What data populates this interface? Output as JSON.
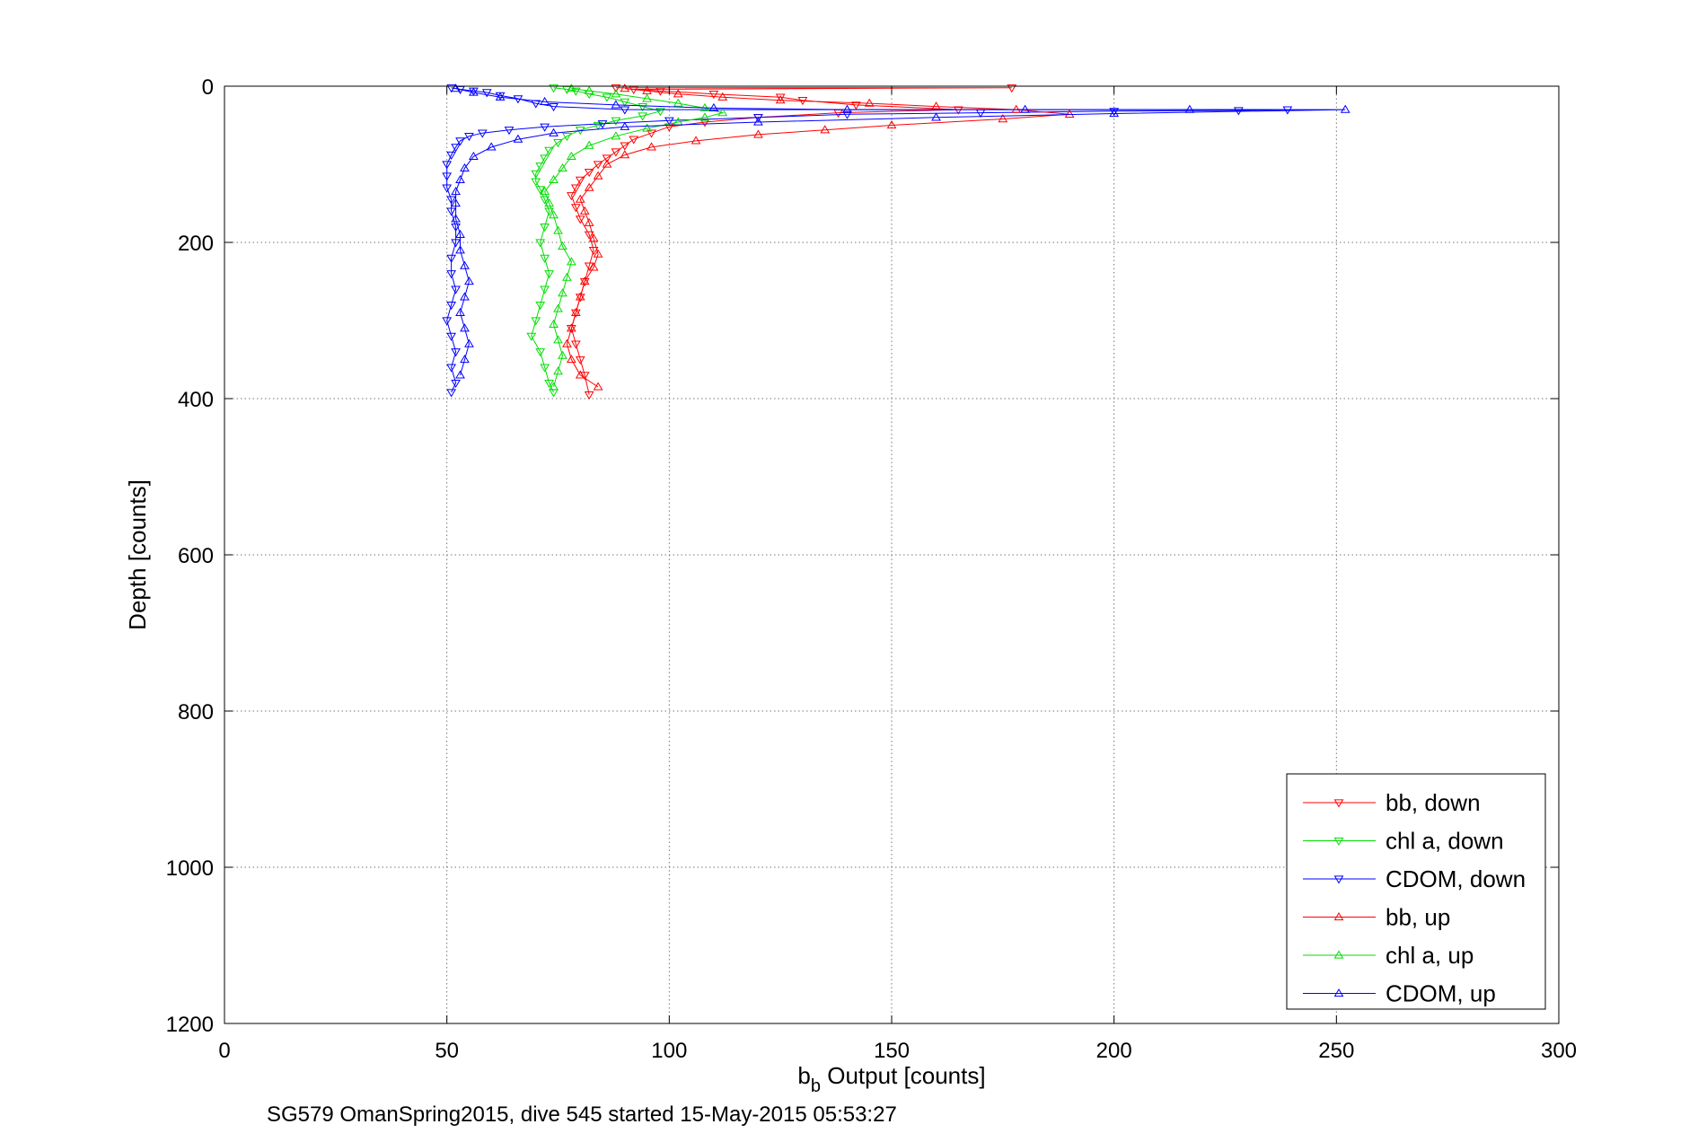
{
  "chart_data": {
    "type": "scatter",
    "title": "",
    "xlabel_base": "b",
    "xlabel_sub": "b",
    "xlabel_rest": " Output [counts]",
    "ylabel": "Depth [counts]",
    "caption": "SG579 OmanSpring2015, dive 545 started 15-May-2015 05:53:27",
    "xlim": [
      0,
      300
    ],
    "ylim": [
      0,
      1200
    ],
    "y_reversed": true,
    "grid": true,
    "legend_position": "bottom-right",
    "x_ticks": [
      0,
      50,
      100,
      150,
      200,
      250,
      300
    ],
    "y_ticks": [
      0,
      200,
      400,
      600,
      800,
      1000,
      1200
    ],
    "x_tick_labels": [
      "0",
      "50",
      "100",
      "150",
      "200",
      "250",
      "300"
    ],
    "y_tick_labels": [
      "0",
      "200",
      "400",
      "600",
      "800",
      "1000",
      "1200"
    ],
    "series": [
      {
        "name": "bb, down",
        "color": "#ff0000",
        "marker": "triangle-down",
        "points": [
          [
            88,
            2
          ],
          [
            177,
            2
          ],
          [
            92,
            4
          ],
          [
            98,
            6
          ],
          [
            110,
            10
          ],
          [
            125,
            14
          ],
          [
            130,
            18
          ],
          [
            142,
            24
          ],
          [
            165,
            30
          ],
          [
            138,
            34
          ],
          [
            120,
            40
          ],
          [
            108,
            46
          ],
          [
            100,
            52
          ],
          [
            96,
            60
          ],
          [
            92,
            68
          ],
          [
            90,
            76
          ],
          [
            88,
            84
          ],
          [
            86,
            92
          ],
          [
            84,
            100
          ],
          [
            82,
            110
          ],
          [
            80,
            120
          ],
          [
            79,
            130
          ],
          [
            78,
            140
          ],
          [
            79,
            155
          ],
          [
            80,
            170
          ],
          [
            82,
            190
          ],
          [
            83,
            210
          ],
          [
            82,
            230
          ],
          [
            81,
            250
          ],
          [
            80,
            270
          ],
          [
            79,
            290
          ],
          [
            78,
            310
          ],
          [
            79,
            330
          ],
          [
            80,
            350
          ],
          [
            81,
            370
          ],
          [
            82,
            395
          ]
        ]
      },
      {
        "name": "chl a, down",
        "color": "#00dd00",
        "marker": "triangle-down",
        "points": [
          [
            74,
            2
          ],
          [
            77,
            4
          ],
          [
            79,
            6
          ],
          [
            82,
            10
          ],
          [
            86,
            14
          ],
          [
            90,
            20
          ],
          [
            94,
            26
          ],
          [
            98,
            32
          ],
          [
            94,
            38
          ],
          [
            88,
            44
          ],
          [
            84,
            50
          ],
          [
            80,
            56
          ],
          [
            77,
            64
          ],
          [
            75,
            72
          ],
          [
            73,
            82
          ],
          [
            72,
            92
          ],
          [
            71,
            102
          ],
          [
            70,
            112
          ],
          [
            70,
            122
          ],
          [
            71,
            132
          ],
          [
            72,
            145
          ],
          [
            73,
            160
          ],
          [
            72,
            180
          ],
          [
            71,
            200
          ],
          [
            72,
            220
          ],
          [
            73,
            240
          ],
          [
            72,
            260
          ],
          [
            71,
            280
          ],
          [
            70,
            300
          ],
          [
            69,
            320
          ],
          [
            71,
            340
          ],
          [
            72,
            360
          ],
          [
            73,
            380
          ],
          [
            74,
            392
          ]
        ]
      },
      {
        "name": "CDOM, down",
        "color": "#0000ff",
        "marker": "triangle-down",
        "points": [
          [
            51,
            2
          ],
          [
            53,
            4
          ],
          [
            56,
            6
          ],
          [
            59,
            8
          ],
          [
            62,
            12
          ],
          [
            66,
            16
          ],
          [
            70,
            22
          ],
          [
            74,
            26
          ],
          [
            90,
            30
          ],
          [
            239,
            30
          ],
          [
            228,
            31
          ],
          [
            200,
            32
          ],
          [
            170,
            34
          ],
          [
            140,
            36
          ],
          [
            120,
            40
          ],
          [
            100,
            44
          ],
          [
            85,
            48
          ],
          [
            72,
            52
          ],
          [
            64,
            56
          ],
          [
            58,
            60
          ],
          [
            55,
            64
          ],
          [
            53,
            70
          ],
          [
            52,
            78
          ],
          [
            51,
            88
          ],
          [
            50,
            100
          ],
          [
            50,
            115
          ],
          [
            50,
            130
          ],
          [
            51,
            145
          ],
          [
            51,
            160
          ],
          [
            52,
            180
          ],
          [
            52,
            200
          ],
          [
            51,
            220
          ],
          [
            51,
            240
          ],
          [
            52,
            260
          ],
          [
            51,
            280
          ],
          [
            50,
            300
          ],
          [
            51,
            320
          ],
          [
            52,
            340
          ],
          [
            51,
            360
          ],
          [
            52,
            380
          ],
          [
            51,
            392
          ]
        ]
      },
      {
        "name": "bb, up",
        "color": "#ff0000",
        "marker": "triangle-up",
        "points": [
          [
            84,
            385
          ],
          [
            80,
            370
          ],
          [
            78,
            350
          ],
          [
            77,
            330
          ],
          [
            78,
            310
          ],
          [
            79,
            290
          ],
          [
            80,
            270
          ],
          [
            81,
            250
          ],
          [
            83,
            232
          ],
          [
            84,
            215
          ],
          [
            83,
            195
          ],
          [
            82,
            175
          ],
          [
            81,
            160
          ],
          [
            80,
            145
          ],
          [
            82,
            130
          ],
          [
            84,
            115
          ],
          [
            86,
            100
          ],
          [
            90,
            88
          ],
          [
            96,
            78
          ],
          [
            106,
            70
          ],
          [
            120,
            62
          ],
          [
            135,
            56
          ],
          [
            150,
            50
          ],
          [
            175,
            42
          ],
          [
            190,
            36
          ],
          [
            178,
            30
          ],
          [
            160,
            26
          ],
          [
            145,
            22
          ],
          [
            125,
            18
          ],
          [
            112,
            14
          ],
          [
            102,
            10
          ],
          [
            95,
            6
          ],
          [
            90,
            3
          ]
        ]
      },
      {
        "name": "chl a, up",
        "color": "#00dd00",
        "marker": "triangle-up",
        "points": [
          [
            74,
            385
          ],
          [
            75,
            365
          ],
          [
            76,
            345
          ],
          [
            75,
            325
          ],
          [
            74,
            305
          ],
          [
            75,
            285
          ],
          [
            76,
            265
          ],
          [
            77,
            245
          ],
          [
            78,
            225
          ],
          [
            76,
            205
          ],
          [
            75,
            185
          ],
          [
            74,
            165
          ],
          [
            73,
            150
          ],
          [
            72,
            135
          ],
          [
            74,
            120
          ],
          [
            76,
            105
          ],
          [
            78,
            90
          ],
          [
            82,
            76
          ],
          [
            88,
            64
          ],
          [
            95,
            54
          ],
          [
            102,
            46
          ],
          [
            108,
            40
          ],
          [
            112,
            34
          ],
          [
            108,
            28
          ],
          [
            102,
            22
          ],
          [
            95,
            16
          ],
          [
            88,
            10
          ],
          [
            82,
            6
          ],
          [
            78,
            3
          ]
        ]
      },
      {
        "name": "CDOM, up",
        "color": "#0000ff",
        "marker": "triangle-up",
        "points": [
          [
            53,
            370
          ],
          [
            54,
            350
          ],
          [
            55,
            330
          ],
          [
            54,
            310
          ],
          [
            53,
            290
          ],
          [
            54,
            270
          ],
          [
            55,
            250
          ],
          [
            54,
            230
          ],
          [
            53,
            210
          ],
          [
            53,
            190
          ],
          [
            52,
            170
          ],
          [
            52,
            150
          ],
          [
            52,
            135
          ],
          [
            53,
            120
          ],
          [
            54,
            105
          ],
          [
            56,
            90
          ],
          [
            60,
            78
          ],
          [
            66,
            68
          ],
          [
            74,
            60
          ],
          [
            90,
            52
          ],
          [
            120,
            46
          ],
          [
            160,
            40
          ],
          [
            200,
            35
          ],
          [
            252,
            30
          ],
          [
            217,
            30
          ],
          [
            180,
            30
          ],
          [
            140,
            30
          ],
          [
            110,
            28
          ],
          [
            88,
            24
          ],
          [
            72,
            20
          ],
          [
            62,
            14
          ],
          [
            56,
            8
          ],
          [
            52,
            3
          ]
        ]
      }
    ]
  }
}
